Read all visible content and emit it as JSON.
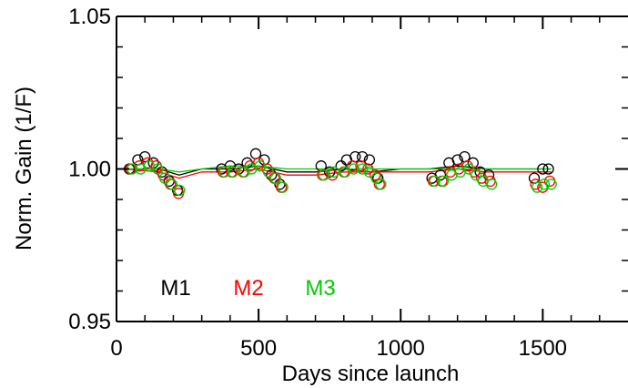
{
  "chart_data": {
    "type": "scatter",
    "title": "",
    "xlabel": "Days since launch",
    "ylabel": "Norm. Gain (1/F)",
    "xlim": [
      0,
      1800
    ],
    "ylim": [
      0.95,
      1.05
    ],
    "xticks": [
      0,
      500,
      1000,
      1500
    ],
    "yticks": [
      0.95,
      1.0,
      1.05
    ],
    "xtick_labels": [
      "0",
      "500",
      "1000",
      "1500"
    ],
    "ytick_labels": [
      "0.95",
      "1.00",
      "1.05"
    ],
    "grid": false,
    "legend_placement": "bottom-left",
    "series": [
      {
        "name": "M1",
        "color": "#000000",
        "marker": "open-circle",
        "points": [
          [
            45,
            1.0
          ],
          [
            75,
            1.003
          ],
          [
            100,
            1.004
          ],
          [
            130,
            1.002
          ],
          [
            160,
            0.999
          ],
          [
            185,
            0.996
          ],
          [
            215,
            0.993
          ],
          [
            370,
            1.0
          ],
          [
            400,
            1.001
          ],
          [
            430,
            1.0
          ],
          [
            460,
            1.002
          ],
          [
            490,
            1.005
          ],
          [
            520,
            1.003
          ],
          [
            545,
            0.998
          ],
          [
            575,
            0.995
          ],
          [
            720,
            1.001
          ],
          [
            750,
            0.999
          ],
          [
            790,
            1.001
          ],
          [
            810,
            1.003
          ],
          [
            840,
            1.004
          ],
          [
            865,
            1.004
          ],
          [
            890,
            1.003
          ],
          [
            920,
            0.997
          ],
          [
            1110,
            0.997
          ],
          [
            1140,
            0.998
          ],
          [
            1170,
            1.002
          ],
          [
            1200,
            1.003
          ],
          [
            1225,
            1.004
          ],
          [
            1255,
            1.002
          ],
          [
            1280,
            0.999
          ],
          [
            1310,
            0.998
          ],
          [
            1470,
            0.997
          ],
          [
            1500,
            1.0
          ],
          [
            1520,
            1.0
          ]
        ],
        "trend": [
          [
            30,
            1.0
          ],
          [
            150,
            1.0
          ],
          [
            220,
            0.998
          ],
          [
            300,
            1.0
          ],
          [
            400,
            1.0
          ],
          [
            500,
            1.001
          ],
          [
            600,
            0.999
          ],
          [
            700,
            0.999
          ],
          [
            800,
            1.0
          ],
          [
            900,
            0.999
          ],
          [
            1000,
            1.0
          ],
          [
            1100,
            1.0
          ],
          [
            1200,
            1.001
          ],
          [
            1300,
            1.0
          ],
          [
            1400,
            1.0
          ],
          [
            1530,
            1.0
          ]
        ]
      },
      {
        "name": "M2",
        "color": "#ff0000",
        "marker": "open-circle",
        "points": [
          [
            50,
            1.0
          ],
          [
            80,
            1.001
          ],
          [
            110,
            1.002
          ],
          [
            140,
            1.001
          ],
          [
            165,
            0.998
          ],
          [
            190,
            0.995
          ],
          [
            218,
            0.992
          ],
          [
            375,
            0.999
          ],
          [
            405,
            0.999
          ],
          [
            445,
            0.999
          ],
          [
            470,
            1.001
          ],
          [
            500,
            1.002
          ],
          [
            530,
            1.0
          ],
          [
            555,
            0.997
          ],
          [
            580,
            0.994
          ],
          [
            725,
            0.998
          ],
          [
            760,
            0.998
          ],
          [
            800,
            0.999
          ],
          [
            830,
            1.001
          ],
          [
            860,
            1.001
          ],
          [
            885,
            1.0
          ],
          [
            910,
            0.998
          ],
          [
            925,
            0.995
          ],
          [
            1115,
            0.996
          ],
          [
            1145,
            0.996
          ],
          [
            1175,
            0.999
          ],
          [
            1205,
            1.0
          ],
          [
            1235,
            1.001
          ],
          [
            1260,
            0.999
          ],
          [
            1285,
            0.997
          ],
          [
            1315,
            0.996
          ],
          [
            1475,
            0.995
          ],
          [
            1500,
            0.994
          ],
          [
            1525,
            0.996
          ]
        ],
        "trend": [
          [
            30,
            1.0
          ],
          [
            150,
            0.999
          ],
          [
            220,
            0.997
          ],
          [
            300,
            0.999
          ],
          [
            400,
            0.999
          ],
          [
            500,
            1.0
          ],
          [
            600,
            0.998
          ],
          [
            700,
            0.998
          ],
          [
            800,
            0.999
          ],
          [
            900,
            0.999
          ],
          [
            1000,
            0.999
          ],
          [
            1100,
            0.999
          ],
          [
            1200,
            1.0
          ],
          [
            1300,
            0.999
          ],
          [
            1400,
            0.999
          ],
          [
            1530,
            0.999
          ]
        ]
      },
      {
        "name": "M3",
        "color": "#00cc00",
        "marker": "open-circle",
        "points": [
          [
            55,
            1.0
          ],
          [
            85,
            1.0
          ],
          [
            115,
            1.001
          ],
          [
            145,
            1.0
          ],
          [
            170,
            0.997
          ],
          [
            195,
            0.995
          ],
          [
            222,
            0.993
          ],
          [
            380,
            0.999
          ],
          [
            410,
            0.999
          ],
          [
            450,
            0.999
          ],
          [
            475,
            1.0
          ],
          [
            505,
            1.001
          ],
          [
            535,
            0.999
          ],
          [
            560,
            0.997
          ],
          [
            585,
            0.994
          ],
          [
            730,
            0.998
          ],
          [
            765,
            0.999
          ],
          [
            805,
            0.999
          ],
          [
            835,
            1.0
          ],
          [
            865,
            1.0
          ],
          [
            890,
            0.999
          ],
          [
            915,
            0.997
          ],
          [
            930,
            0.995
          ],
          [
            1120,
            0.996
          ],
          [
            1150,
            0.996
          ],
          [
            1180,
            0.998
          ],
          [
            1210,
            0.999
          ],
          [
            1240,
            1.0
          ],
          [
            1265,
            0.998
          ],
          [
            1290,
            0.996
          ],
          [
            1320,
            0.995
          ],
          [
            1480,
            0.994
          ],
          [
            1505,
            0.995
          ],
          [
            1530,
            0.995
          ]
        ],
        "trend": [
          [
            30,
            1.0
          ],
          [
            150,
            1.0
          ],
          [
            220,
            0.999
          ],
          [
            300,
            1.0
          ],
          [
            400,
            1.001
          ],
          [
            500,
            1.001
          ],
          [
            600,
            1.0
          ],
          [
            700,
            1.0
          ],
          [
            800,
            1.0
          ],
          [
            900,
            1.0
          ],
          [
            1000,
            1.0
          ],
          [
            1100,
            1.0
          ],
          [
            1200,
            1.0
          ],
          [
            1300,
            1.0
          ],
          [
            1400,
            1.0
          ],
          [
            1530,
            1.0
          ]
        ]
      }
    ]
  }
}
